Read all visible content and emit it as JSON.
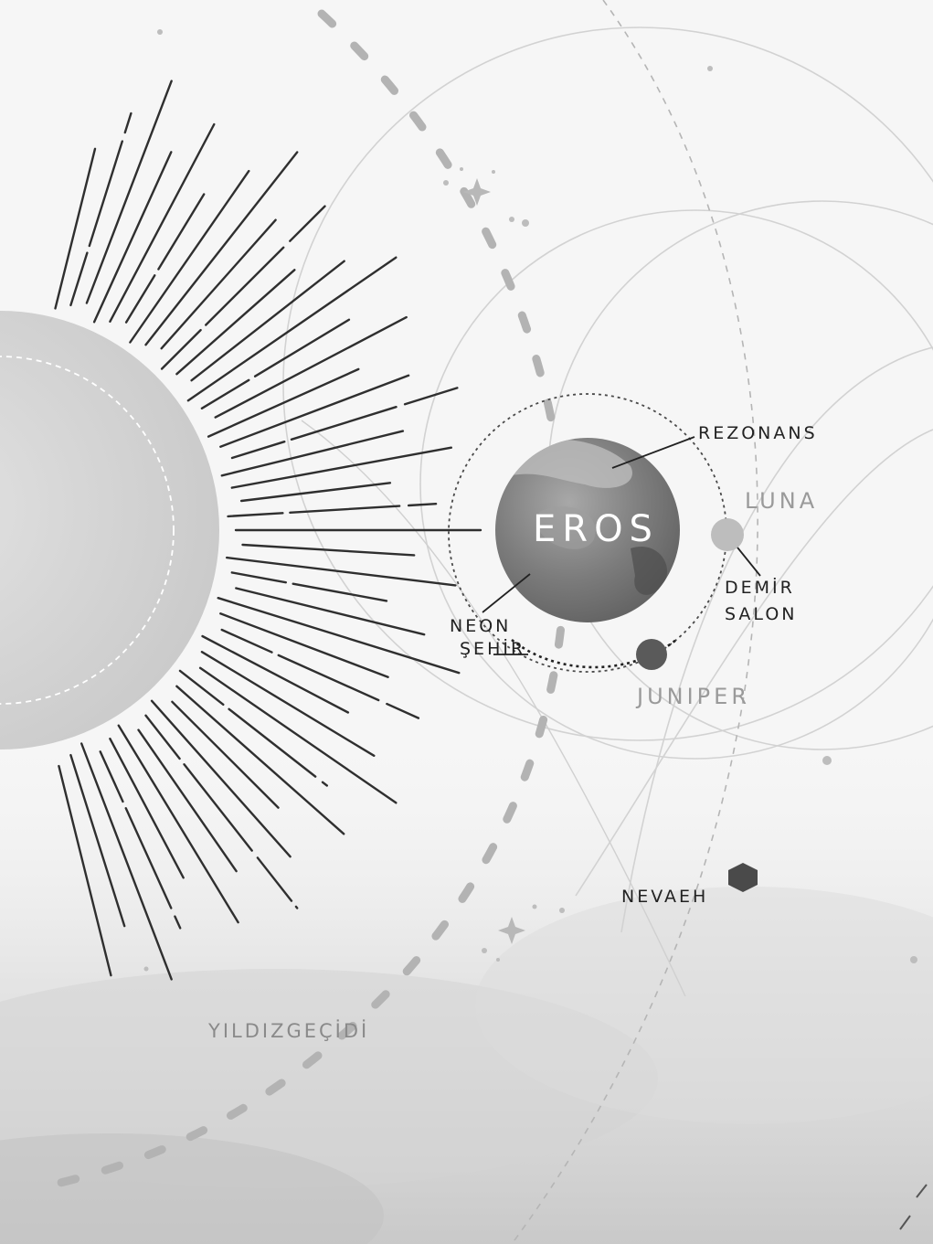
{
  "map": {
    "planet_main": "EROS",
    "places": {
      "rezonans": "REZONANS",
      "neon_line1": "NEON",
      "neon_line2": "ŞEHİR",
      "demir_line1": "DEMİR",
      "demir_line2": "SALON"
    },
    "moons": {
      "luna": "LUNA",
      "juniper": "JUNIPER"
    },
    "outer": {
      "nevaeh": "NEVAEH",
      "yildizgecidi": "YILDIZGEÇİDİ"
    }
  },
  "colors": {
    "background": "#f6f6f6",
    "sun": "#d6d6d6",
    "eros": "#7c7c7c",
    "luna": "#bdbdbd",
    "juniper": "#5a5a5a",
    "nevaeh": "#4a4a4a",
    "label_dark": "#222222",
    "label_grey": "#9a9a9a"
  },
  "icons": [
    "sparkle-star-icon",
    "hexagon-planet-icon"
  ]
}
